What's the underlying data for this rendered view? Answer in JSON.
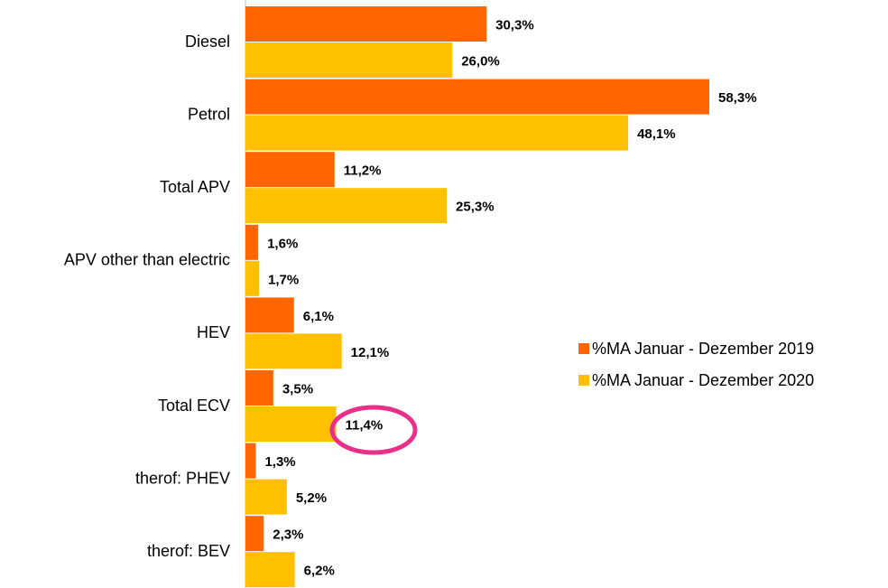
{
  "chart_data": {
    "type": "barh",
    "categories": [
      "Diesel",
      "Petrol",
      "Total APV",
      "APV other than electric",
      "HEV",
      "Total ECV",
      "therof: PHEV",
      "therof: BEV"
    ],
    "series": [
      {
        "name": "%MA Januar - Dezember 2019",
        "color": "#ff6600",
        "values": [
          30.3,
          58.3,
          11.2,
          1.6,
          6.1,
          3.5,
          1.3,
          2.3
        ],
        "value_labels": [
          "30,3%",
          "58,3%",
          "11,2%",
          "1,6%",
          "6,1%",
          "3,5%",
          "1,3%",
          "2,3%"
        ]
      },
      {
        "name": "%MA Januar - Dezember 2020",
        "color": "#ffc000",
        "values": [
          26.0,
          48.1,
          25.3,
          1.7,
          12.1,
          11.4,
          5.2,
          6.2
        ],
        "value_labels": [
          "26,0%",
          "48,1%",
          "25,3%",
          "1,7%",
          "12,1%",
          "11,4%",
          "5,2%",
          "6,2%"
        ]
      }
    ],
    "legend": "right"
  }
}
